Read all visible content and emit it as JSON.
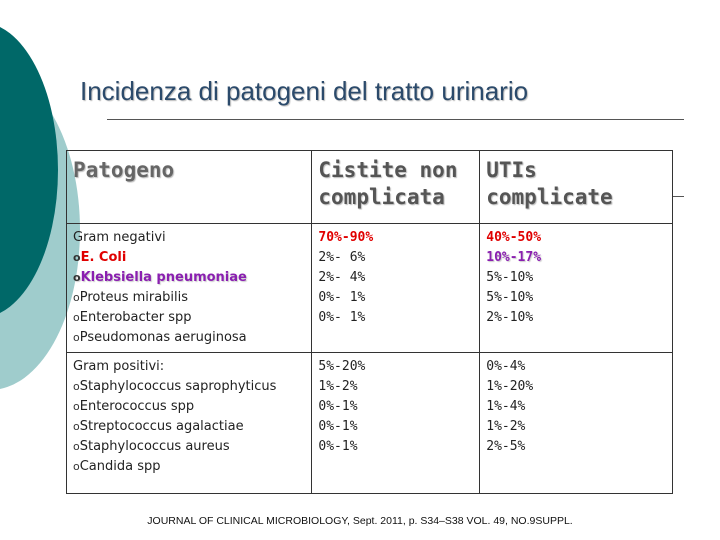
{
  "title": "Incidenza di patogeni del tratto urinario",
  "table": {
    "header": [
      "Patogeno",
      "Cistite non complicata",
      "UTIs complicate"
    ],
    "groups": [
      {
        "label": "Gram negativi",
        "rows": [
          [
            "E. Coli",
            "70%-90%",
            "40%-50%"
          ],
          [
            "Klebsiella pneumoniae",
            "2%- 6%",
            "10%-17%"
          ],
          [
            "Proteus mirabilis",
            "2%- 4%",
            "5%-10%"
          ],
          [
            "Enterobacter spp",
            "0%- 1%",
            "5%-10%"
          ],
          [
            "Pseudomonas aeruginosa",
            "0%- 1%",
            "2%-10%"
          ]
        ]
      },
      {
        "label": "Gram positivi:",
        "rows": [
          [
            "Staphylococcus saprophyticus",
            "5%-20%",
            "0%-4%"
          ],
          [
            "Enterococcus spp",
            "1%-2%",
            "1%-20%"
          ],
          [
            "Streptococcus agalactiae",
            "0%-1%",
            "1%-4%"
          ],
          [
            "Staphylococcus aureus",
            "0%-1%",
            "1%-2%"
          ],
          [
            "Candida spp",
            "0%-1%",
            "2%-5%"
          ]
        ]
      }
    ]
  },
  "footer": "JOURNAL OF CLINICAL MICROBIOLOGY, Sept. 2011, p. S34–S38 VOL. 49, NO.9SUPPL."
}
